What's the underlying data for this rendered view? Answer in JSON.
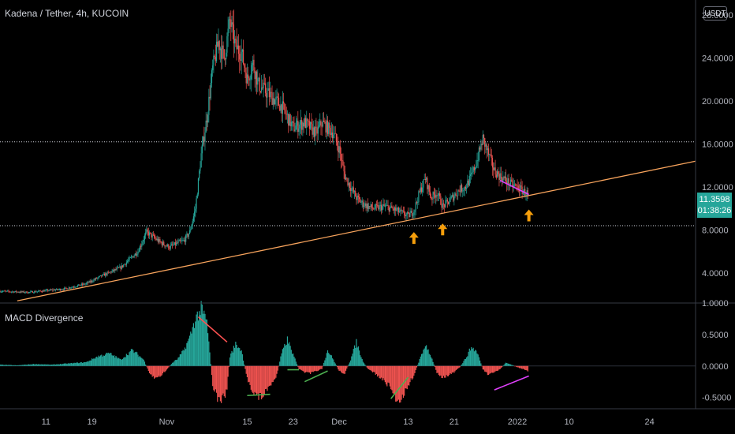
{
  "header": {
    "symbol_title": "Kadena / Tether, 4h, KUCOIN",
    "currency_button": "USDT"
  },
  "price_tag": {
    "price": "11.3598",
    "countdown": "01:38:26"
  },
  "colors": {
    "up": "#26a69a",
    "down": "#ef5350",
    "trendline": "#f7a35c",
    "arrow": "#f59e0b",
    "divergence_magenta": "#e040fb",
    "divergence_red": "#ff5252",
    "divergence_green": "#4caf50"
  },
  "chart_data": [
    {
      "type": "line",
      "title": "Kadena / Tether, 4h, KUCOIN",
      "y_ticks": [
        "28.0000",
        "24.0000",
        "20.0000",
        "16.0000",
        "12.0000",
        "8.0000",
        "4.0000"
      ],
      "y_tick_values": [
        28,
        24,
        20,
        16,
        12,
        8,
        4
      ],
      "ylim": [
        1.2,
        29.4
      ],
      "x_ticks": [
        "11",
        "19",
        "Nov",
        "15",
        "23",
        "Dec",
        "13",
        "21",
        "2022",
        "10",
        "24"
      ],
      "x_tick_days": [
        11,
        19,
        32,
        46,
        54,
        62,
        74,
        82,
        93,
        102,
        116
      ],
      "xlim": [
        3,
        124
      ],
      "x_unit": "days since Oct 1, 2021",
      "price_path_days": [
        3,
        8,
        14,
        18,
        21,
        24,
        27,
        28.5,
        30,
        31,
        32.5,
        34,
        35,
        36,
        37,
        38,
        39,
        40,
        41,
        42,
        43,
        44,
        45,
        46,
        47,
        48,
        50,
        52,
        54,
        56,
        58,
        59,
        60,
        61,
        62,
        63,
        64,
        65,
        66,
        67,
        68,
        70,
        72,
        74,
        75,
        76,
        77,
        78,
        79,
        80,
        81,
        82,
        83,
        84,
        85,
        86,
        87,
        88,
        89,
        90,
        91,
        92,
        93,
        94,
        95
      ],
      "price_path_values": [
        2.3,
        2.2,
        2.5,
        3.0,
        3.8,
        4.5,
        6.0,
        7.8,
        7.2,
        6.8,
        6.4,
        6.8,
        7.0,
        7.8,
        10.0,
        15.0,
        18.5,
        23.0,
        25.5,
        24.0,
        27.5,
        25.0,
        24.5,
        22.0,
        23.5,
        21.5,
        20.5,
        19.5,
        17.5,
        18.0,
        17.0,
        18.0,
        17.5,
        17.0,
        15.5,
        13.0,
        12.0,
        11.0,
        10.5,
        10.2,
        10.0,
        10.2,
        9.8,
        9.3,
        9.8,
        11.5,
        12.8,
        11.0,
        11.5,
        10.2,
        10.6,
        11.2,
        11.8,
        12.0,
        13.0,
        14.5,
        16.5,
        15.0,
        13.5,
        13.0,
        12.6,
        12.2,
        12.0,
        11.6,
        11.36
      ],
      "last_price": 11.3598,
      "horizontal_levels": [
        16.2,
        8.4
      ],
      "trendline": {
        "from": [
          6,
          1.4
        ],
        "to": [
          124,
          14.4
        ]
      },
      "arrow_markers": [
        {
          "day": 75,
          "value": 7.8
        },
        {
          "day": 80,
          "value": 8.6
        },
        {
          "day": 95,
          "value": 9.9
        }
      ],
      "divergence_line": {
        "from": [
          90,
          12.6
        ],
        "to": [
          95,
          11.3
        ]
      },
      "grid": false
    },
    {
      "type": "bar",
      "title": "MACD Divergence",
      "y_ticks": [
        "1.0000",
        "0.5000",
        "0.0000",
        "-0.5000"
      ],
      "y_tick_values": [
        1.0,
        0.5,
        0.0,
        -0.5
      ],
      "ylim": [
        -0.68,
        1.0
      ],
      "histogram_days": [
        3,
        6,
        9,
        12,
        15,
        18,
        20,
        22,
        24,
        26,
        27,
        28,
        29,
        30,
        31,
        32,
        33,
        34,
        35,
        36,
        36.5,
        37,
        38,
        39,
        40,
        41,
        42,
        42.5,
        43,
        44,
        45,
        46,
        47,
        48,
        49,
        50,
        51,
        52,
        53,
        54,
        55,
        56,
        57,
        58,
        59,
        60,
        61,
        62,
        63,
        64,
        65,
        66,
        67,
        68,
        69,
        70,
        71,
        72,
        73,
        74,
        75,
        76,
        76.5,
        77,
        78,
        79,
        80,
        81,
        82,
        83,
        84,
        85,
        86,
        87,
        88,
        89,
        90,
        91,
        92,
        93,
        94,
        95
      ],
      "histogram_values": [
        0.02,
        0.01,
        0.03,
        0.02,
        0.04,
        0.06,
        0.15,
        0.2,
        0.1,
        0.25,
        0.18,
        0.1,
        -0.12,
        -0.2,
        -0.15,
        -0.06,
        0.05,
        0.12,
        0.25,
        0.45,
        0.6,
        0.75,
        0.9,
        0.7,
        -0.3,
        -0.55,
        -0.5,
        -0.35,
        0.15,
        0.35,
        0.25,
        -0.2,
        -0.4,
        -0.5,
        -0.45,
        -0.3,
        -0.2,
        0.2,
        0.42,
        0.18,
        -0.05,
        -0.1,
        -0.12,
        -0.08,
        -0.05,
        0.25,
        0.1,
        -0.08,
        -0.12,
        0.1,
        0.38,
        0.1,
        -0.05,
        -0.1,
        -0.18,
        -0.25,
        -0.35,
        -0.55,
        -0.5,
        -0.3,
        -0.15,
        0.1,
        0.2,
        0.35,
        0.15,
        -0.1,
        -0.18,
        -0.15,
        -0.1,
        -0.02,
        0.12,
        0.3,
        0.22,
        -0.05,
        -0.15,
        -0.1,
        -0.05,
        0.05,
        0.02,
        -0.02,
        -0.05,
        -0.1
      ],
      "divergence_segments": [
        {
          "color": "red",
          "from": [
            37.5,
            0.78
          ],
          "to": [
            42.5,
            0.38
          ]
        },
        {
          "color": "green",
          "from": [
            46,
            -0.47
          ],
          "to": [
            50,
            -0.45
          ]
        },
        {
          "color": "green",
          "from": [
            53,
            -0.06
          ],
          "to": [
            55,
            -0.06
          ]
        },
        {
          "color": "green",
          "from": [
            56,
            -0.25
          ],
          "to": [
            60,
            -0.08
          ]
        },
        {
          "color": "green",
          "from": [
            71,
            -0.52
          ],
          "to": [
            74,
            -0.18
          ]
        },
        {
          "color": "magenta",
          "from": [
            89,
            -0.38
          ],
          "to": [
            95,
            -0.16
          ]
        }
      ]
    }
  ]
}
